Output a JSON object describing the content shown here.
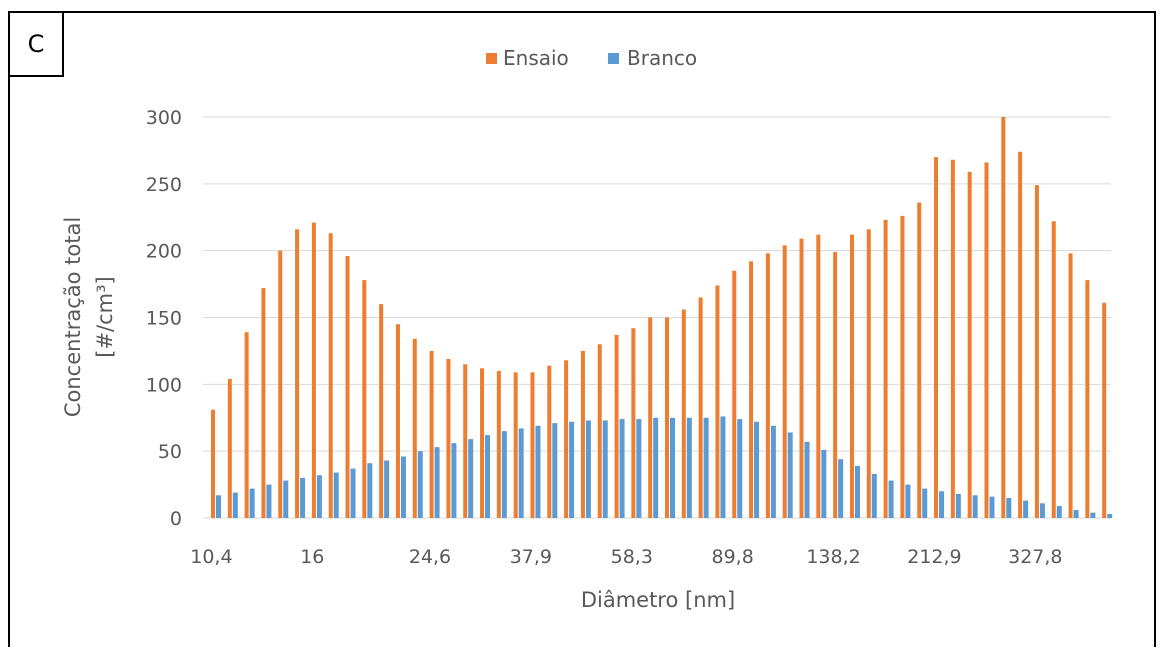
{
  "panel_label": "C",
  "colors": {
    "ensaio": "#ED7D31",
    "branco": "#5B9BD5",
    "grid": "#D9D9D9",
    "text": "#595959"
  },
  "chart_data": {
    "type": "bar",
    "title": "",
    "xlabel": "Diâmetro [nm]",
    "ylabel": "Concentração total",
    "ylabel_unit": "[#/cm³]",
    "ylim": [
      0,
      300
    ],
    "yticks": [
      "0",
      "50",
      "100",
      "150",
      "200",
      "250",
      "300"
    ],
    "xtick_labels": [
      {
        "index": 0,
        "text": "10,4"
      },
      {
        "index": 6,
        "text": "16"
      },
      {
        "index": 13,
        "text": "24,6"
      },
      {
        "index": 19,
        "text": "37,9"
      },
      {
        "index": 25,
        "text": "58,3"
      },
      {
        "index": 31,
        "text": "89,8"
      },
      {
        "index": 37,
        "text": "138,2"
      },
      {
        "index": 43,
        "text": "212,9"
      },
      {
        "index": 49,
        "text": "327,8"
      }
    ],
    "legend_position": "top",
    "grid": true,
    "series": [
      {
        "name": "Ensaio",
        "values": [
          81,
          104,
          139,
          172,
          200,
          216,
          221,
          213,
          196,
          178,
          160,
          145,
          134,
          125,
          119,
          115,
          112,
          110,
          109,
          109,
          114,
          118,
          125,
          130,
          137,
          142,
          150,
          150,
          156,
          165,
          174,
          185,
          192,
          198,
          204,
          209,
          212,
          199,
          212,
          216,
          223,
          226,
          236,
          270,
          268,
          259,
          266,
          300,
          274,
          249,
          222,
          198,
          178,
          161
        ]
      },
      {
        "name": "Branco",
        "values": [
          17,
          19,
          22,
          25,
          28,
          30,
          32,
          34,
          37,
          41,
          43,
          46,
          50,
          53,
          56,
          59,
          62,
          65,
          67,
          69,
          71,
          72,
          73,
          73,
          74,
          74,
          75,
          75,
          75,
          75,
          76,
          74,
          72,
          69,
          64,
          57,
          51,
          44,
          39,
          33,
          28,
          25,
          22,
          20,
          18,
          17,
          16,
          15,
          13,
          11,
          9,
          6,
          4,
          3
        ]
      }
    ]
  }
}
